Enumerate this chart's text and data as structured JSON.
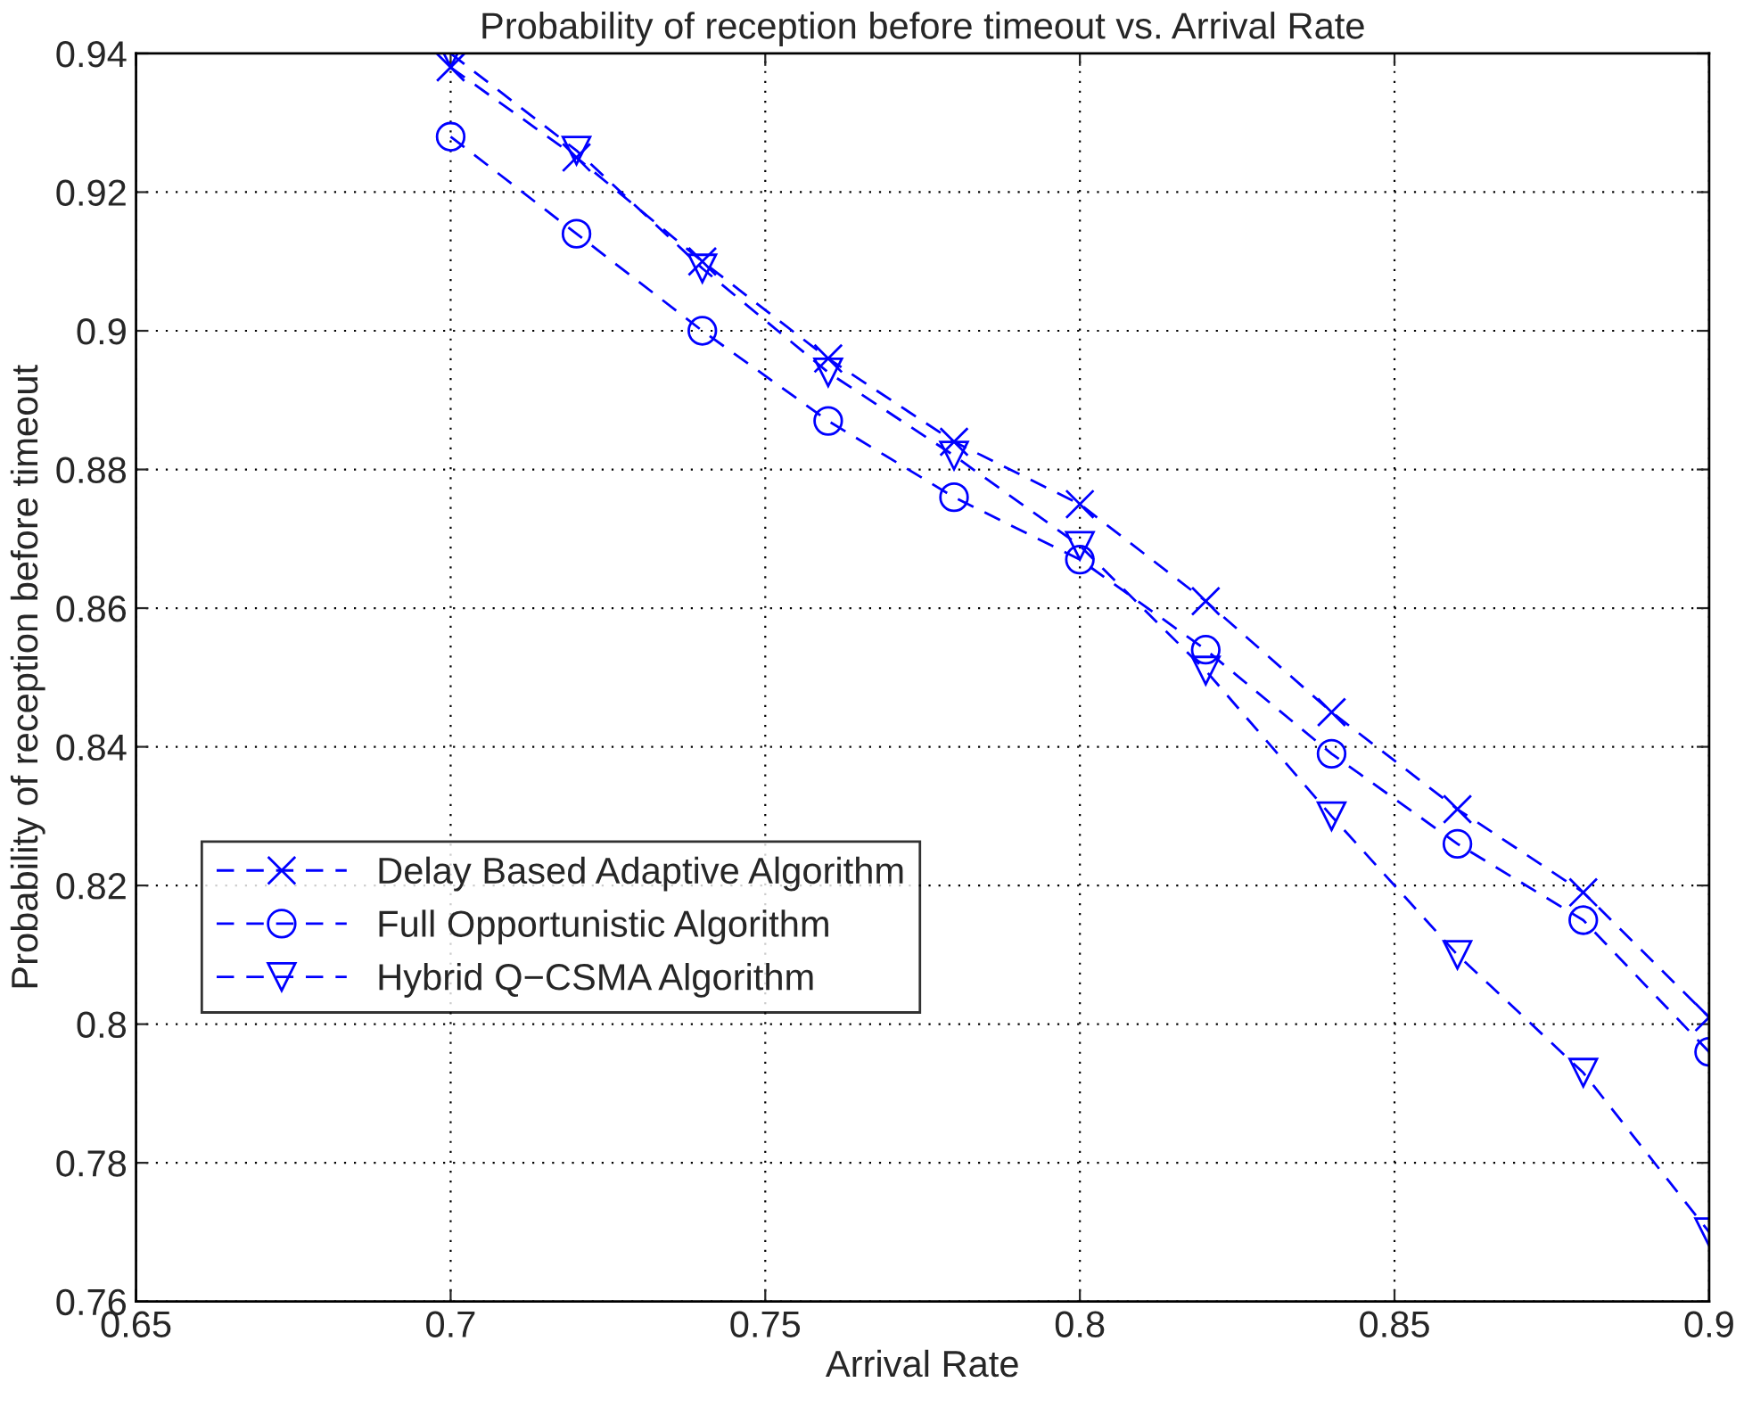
{
  "chart_data": {
    "type": "line",
    "title": "Probability of reception before timeout vs. Arrival Rate",
    "xlabel": "Arrival Rate",
    "ylabel": "Probability of reception before timeout",
    "x": [
      0.7,
      0.72,
      0.74,
      0.76,
      0.78,
      0.8,
      0.82,
      0.84,
      0.86,
      0.88,
      0.9
    ],
    "series": [
      {
        "name": "Delay Based Adaptive Algorithm",
        "color": "#0000ff",
        "marker": "cross",
        "values": [
          0.938,
          0.925,
          0.91,
          0.896,
          0.884,
          0.875,
          0.861,
          0.845,
          0.831,
          0.819,
          0.801
        ]
      },
      {
        "name": "Full Opportunistic Algorithm",
        "color": "#0000ff",
        "marker": "circle",
        "values": [
          0.928,
          0.914,
          0.9,
          0.887,
          0.876,
          0.867,
          0.854,
          0.839,
          0.826,
          0.815,
          0.796
        ]
      },
      {
        "name": "Hybrid Q−CSMA Algorithm",
        "color": "#0000ff",
        "marker": "triangle",
        "values": [
          0.94,
          0.926,
          0.909,
          0.894,
          0.882,
          0.869,
          0.851,
          0.83,
          0.81,
          0.793,
          0.77
        ]
      }
    ],
    "xlim": [
      0.65,
      0.9
    ],
    "xticks": [
      0.65,
      0.7,
      0.75,
      0.8,
      0.85,
      0.9
    ],
    "ylim": [
      0.76,
      0.94
    ],
    "yticks": [
      0.76,
      0.78,
      0.8,
      0.82,
      0.84,
      0.86,
      0.88,
      0.9,
      0.92,
      0.94
    ],
    "grid": true,
    "legend": "left",
    "line_style": "dashed"
  }
}
